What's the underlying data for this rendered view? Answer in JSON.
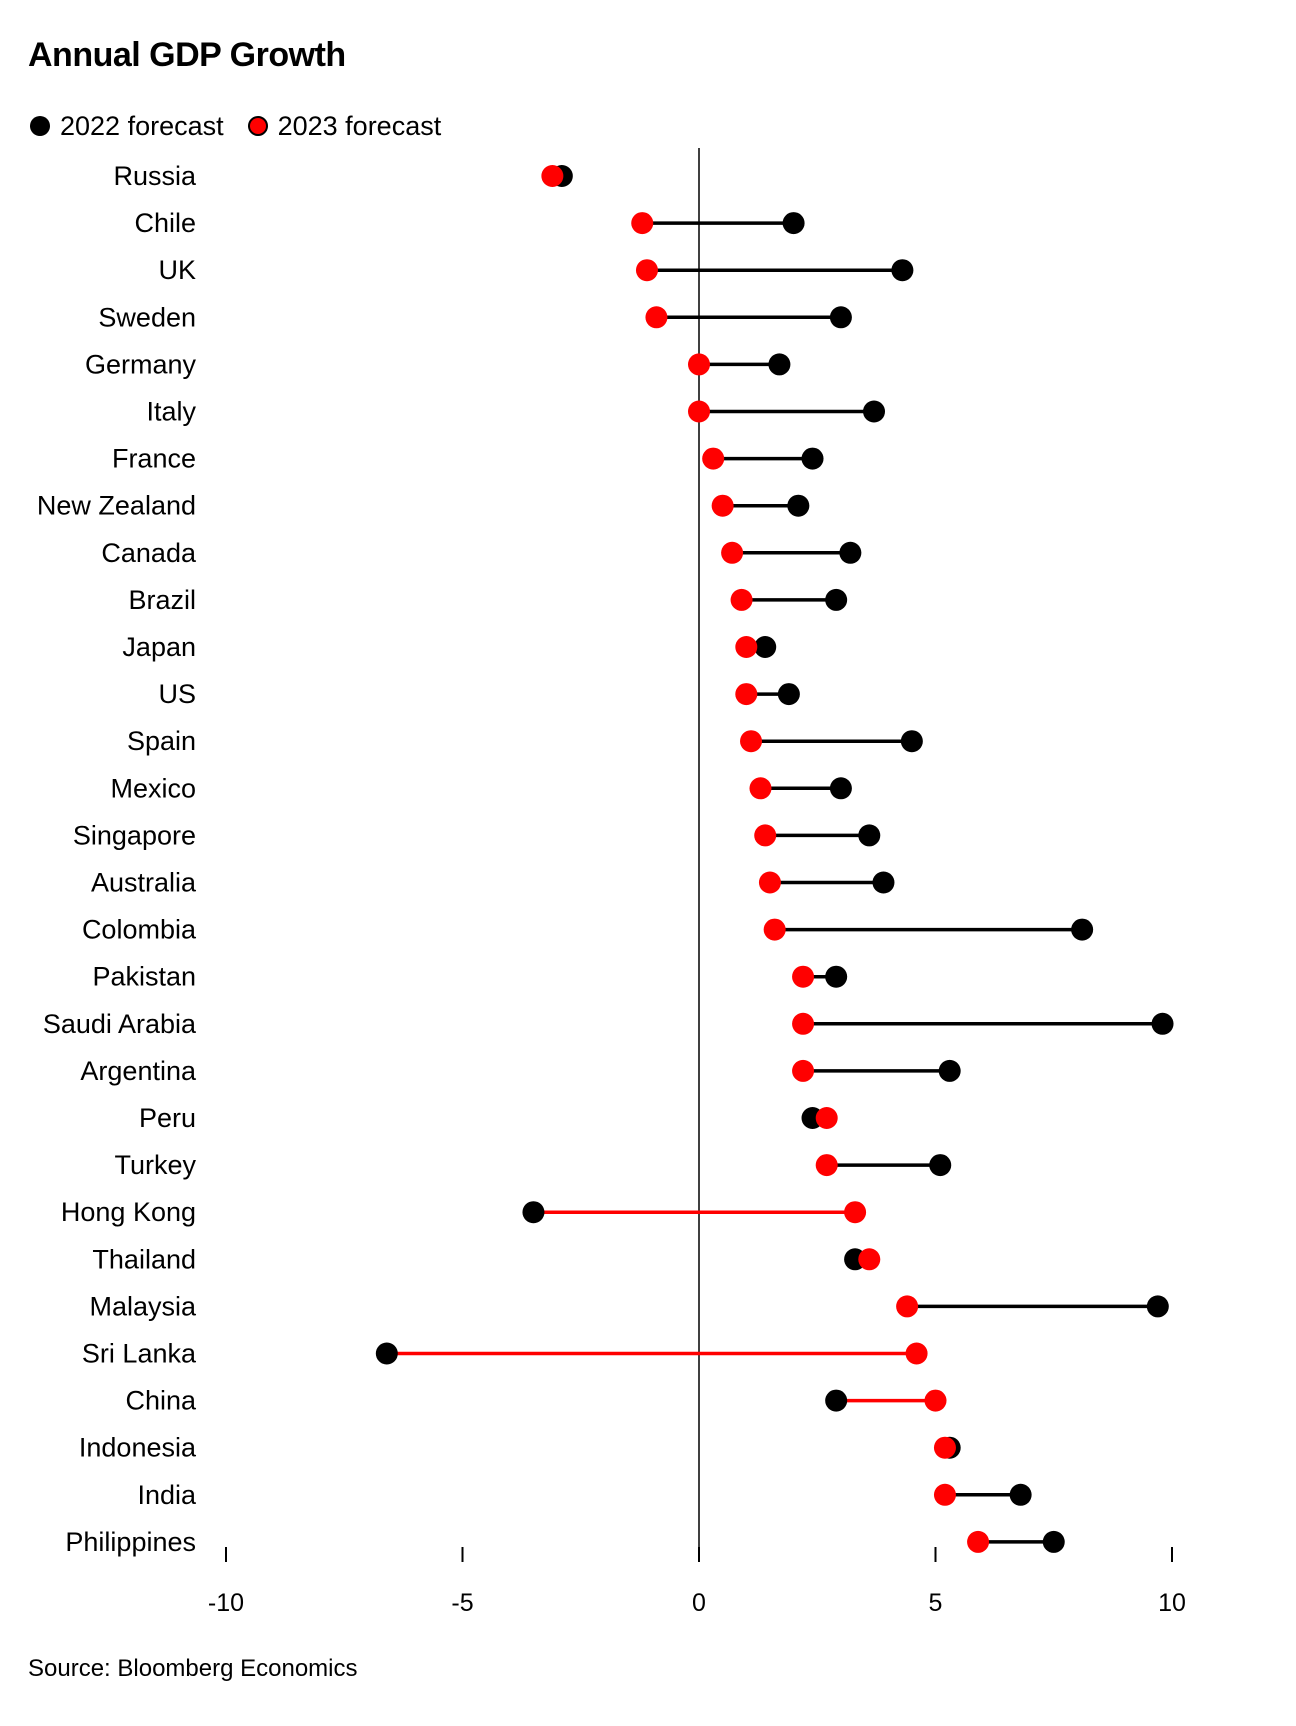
{
  "chart_data": {
    "type": "dot-range",
    "title": "Annual GDP Growth",
    "legend": [
      {
        "label": "2022 forecast",
        "color": "#000000"
      },
      {
        "label": "2023 forecast",
        "color": "#ff0000"
      }
    ],
    "legend_position": "top-left",
    "xlim": [
      -10,
      10
    ],
    "x_ticks": [
      "-10",
      "-5",
      "0",
      "5",
      "10"
    ],
    "categories": [
      "Russia",
      "Chile",
      "UK",
      "Sweden",
      "Germany",
      "Italy",
      "France",
      "New Zealand",
      "Canada",
      "Brazil",
      "Japan",
      "US",
      "Spain",
      "Mexico",
      "Singapore",
      "Australia",
      "Colombia",
      "Pakistan",
      "Saudi Arabia",
      "Argentina",
      "Peru",
      "Turkey",
      "Hong Kong",
      "Thailand",
      "Malaysia",
      "Sri Lanka",
      "China",
      "Indonesia",
      "India",
      "Philippines"
    ],
    "series": [
      {
        "name": "2022 forecast",
        "color": "#000000",
        "values": [
          -2.9,
          2.0,
          4.3,
          3.0,
          1.7,
          3.7,
          2.4,
          2.1,
          3.2,
          2.9,
          1.4,
          1.9,
          4.5,
          3.0,
          3.6,
          3.9,
          8.1,
          2.9,
          9.8,
          5.3,
          2.4,
          5.1,
          -3.5,
          3.3,
          9.7,
          -6.6,
          2.9,
          5.3,
          6.8,
          7.5
        ]
      },
      {
        "name": "2023 forecast",
        "color": "#ff0000",
        "values": [
          -3.1,
          -1.2,
          -1.1,
          -0.9,
          0.0,
          0.0,
          0.3,
          0.5,
          0.7,
          0.9,
          1.0,
          1.0,
          1.1,
          1.3,
          1.4,
          1.5,
          1.6,
          2.2,
          2.2,
          2.2,
          2.7,
          2.7,
          3.3,
          3.6,
          4.4,
          4.6,
          5.0,
          5.2,
          5.2,
          5.9
        ]
      }
    ],
    "grid": false,
    "zero_line": true
  },
  "footer": {
    "source": "Source: Bloomberg Economics"
  }
}
